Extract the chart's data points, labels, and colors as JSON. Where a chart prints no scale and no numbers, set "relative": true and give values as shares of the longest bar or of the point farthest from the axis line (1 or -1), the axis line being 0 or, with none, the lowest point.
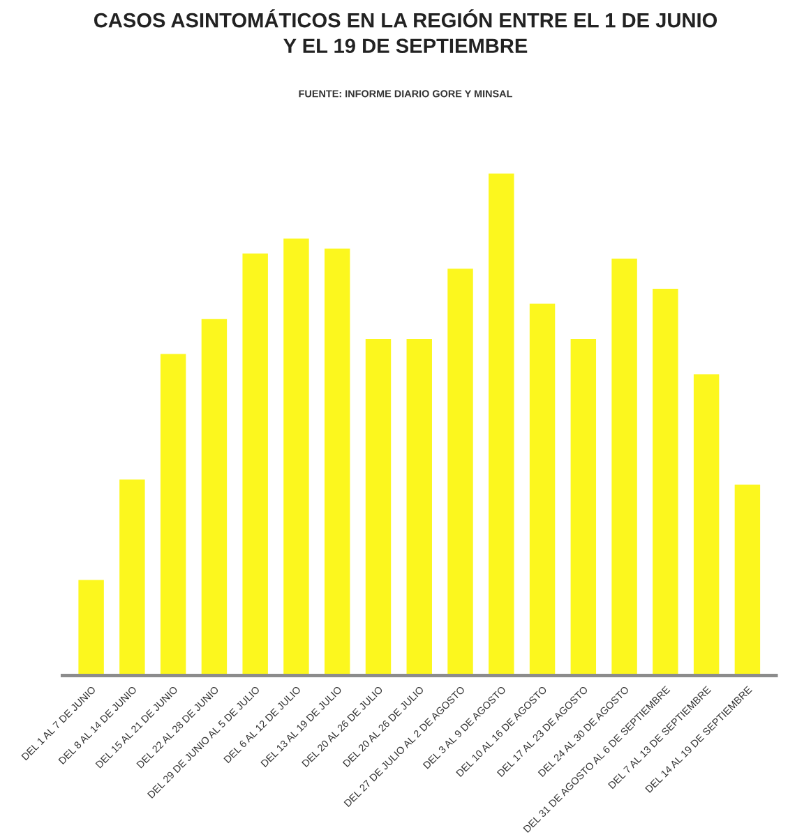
{
  "chart_data": {
    "type": "bar",
    "title": "CASOS ASINTOMÁTICOS EN LA REGIÓN ENTRE EL 1 DE JUNIO\nY EL 19 DE SEPTIEMBRE",
    "subtitle": "FUENTE: INFORME DIARIO GORE Y MINSAL",
    "categories": [
      "DEL 1 AL 7 DE JUNIO",
      "DEL 8 AL 14 DE JUNIO",
      "DEL 15 AL 21 DE JUNIO",
      "DEL 22 AL 28 DE JUNIO",
      "DEL 29 DE JUNIO AL 5 DE JULIO",
      "DEL 6 AL 12 DE JULIO",
      "DEL 13 AL 19 DE JULIO",
      "DEL 20 AL 26 DE JULIO",
      "DEL 20 AL 26 DE JULIO",
      "DEL 27 DE JULIO AL 2 DE AGOSTO",
      "DEL 3 AL 9 DE AGOSTO",
      "DEL 10 AL 16 DE AGOSTO",
      "DEL 17 AL 23 DE AGOSTO",
      "DEL 24 AL 30 DE AGOSTO",
      "DEL 31 DE AGOSTO AL 6 DE SEPTIEMBRE",
      "DEL 7 AL 13 DE SEPTIEMBRE",
      "DEL 14 AL 19 DE SEPTIEMBRE"
    ],
    "values": [
      0.19,
      0.39,
      0.64,
      0.71,
      0.84,
      0.87,
      0.85,
      0.67,
      0.67,
      0.81,
      1,
      0.74,
      0.67,
      0.83,
      0.77,
      0.6,
      0.38
    ],
    "color": "#fcf71e",
    "relative": true
  }
}
